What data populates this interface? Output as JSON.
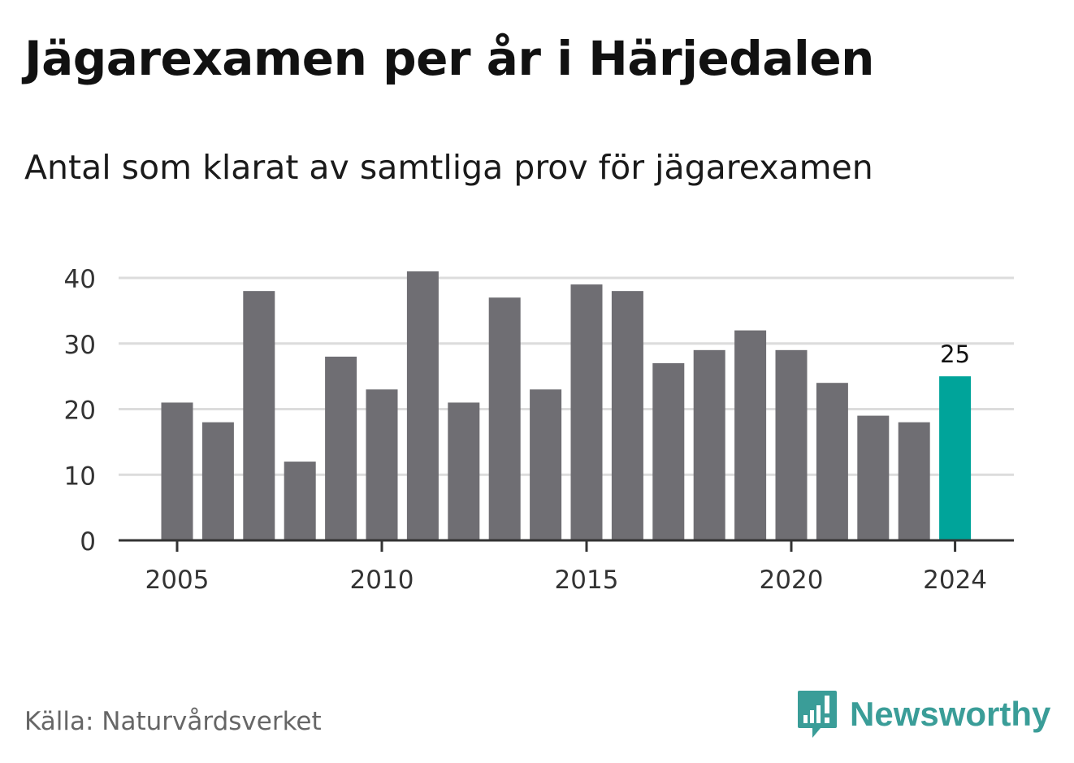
{
  "title": "Jägarexamen per år i Härjedalen",
  "subtitle": "Antal som klarat av samtliga prov för jägarexamen",
  "source": "Källa: Naturvårdsverket",
  "brand": {
    "name": "Newsworthy",
    "icon": "newsworthy-logo-icon",
    "color": "#3a9d98"
  },
  "chart_data": {
    "type": "bar",
    "categories": [
      2005,
      2006,
      2007,
      2008,
      2009,
      2010,
      2011,
      2012,
      2013,
      2014,
      2015,
      2016,
      2017,
      2018,
      2019,
      2020,
      2021,
      2022,
      2023,
      2024
    ],
    "values": [
      21,
      18,
      38,
      12,
      28,
      23,
      41,
      21,
      37,
      23,
      39,
      38,
      27,
      29,
      32,
      29,
      24,
      19,
      18,
      25
    ],
    "ylim": [
      0,
      40
    ],
    "yticks": [
      0,
      10,
      20,
      30,
      40
    ],
    "xticks": [
      2005,
      2010,
      2015,
      2020,
      2024
    ],
    "highlight": {
      "category": 2024,
      "label": "25"
    },
    "bar_color": "#6f6e73",
    "highlight_color": "#00a49a",
    "grid": true
  }
}
